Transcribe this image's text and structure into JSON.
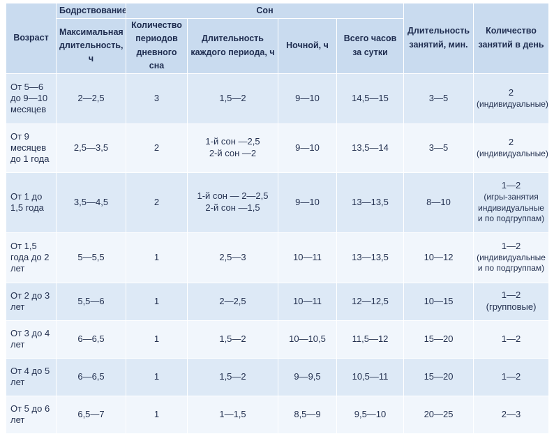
{
  "header": {
    "age": "Возраст",
    "wake_group": "Бодрствование",
    "sleep_group": "Сон",
    "max_wake": "Максимальная длительность, ч",
    "day_sleep_periods": "Количество периодов дневного сна",
    "period_duration": "Длительность каждого периода, ч",
    "night": "Ночной, ч",
    "total_hours": "Всего часов за сутки",
    "lesson_duration": "Длительность занятий, мин.",
    "lessons_per_day": "Количество занятий в день"
  },
  "rows": [
    {
      "age": "От 5—6 до 9—10 месяцев",
      "max_wake": "2—2,5",
      "periods": "3",
      "duration": [
        "1,5—2"
      ],
      "night": "9—10",
      "total": "14,5—15",
      "lesson_min": "3—5",
      "lessons": [
        "2",
        "(индивидуальные)"
      ]
    },
    {
      "age": "От 9 месяцев до 1 года",
      "max_wake": "2,5—3,5",
      "periods": "2",
      "duration": [
        "1-й сон —2,5",
        "2-й сон —2"
      ],
      "night": "9—10",
      "total": "13,5—14",
      "lesson_min": "3—5",
      "lessons": [
        "2",
        "(индивидуальные)"
      ]
    },
    {
      "age": "От 1 до 1,5 года",
      "max_wake": "3,5—4,5",
      "periods": "2",
      "duration": [
        "1-й сон — 2—2,5",
        "2-й сон —1,5"
      ],
      "night": "9—10",
      "total": "13—13,5",
      "lesson_min": "8—10",
      "lessons": [
        "1—2",
        "(игры-занятия",
        "индивидуальные",
        "и по подгруппам)"
      ]
    },
    {
      "age": "От 1,5 года до 2 лет",
      "max_wake": "5—5,5",
      "periods": "1",
      "duration": [
        "2,5—3"
      ],
      "night": "10—11",
      "total": "13—13,5",
      "lesson_min": "10—12",
      "lessons": [
        "1—2",
        "(индивидуальные",
        "и по подгруппам)"
      ]
    },
    {
      "age": "От 2 до 3 лет",
      "max_wake": "5,5—6",
      "periods": "1",
      "duration": [
        "2—2,5"
      ],
      "night": "10—11",
      "total": "12—12,5",
      "lesson_min": "10—15",
      "lessons": [
        "1—2 (групповые)"
      ]
    },
    {
      "age": "От 3 до 4 лет",
      "max_wake": "6—6,5",
      "periods": "1",
      "duration": [
        "1,5—2"
      ],
      "night": "10—10,5",
      "total": "11,5—12",
      "lesson_min": "15—20",
      "lessons": [
        "1—2"
      ]
    },
    {
      "age": "От 4 до 5 лет",
      "max_wake": "6—6,5",
      "periods": "1",
      "duration": [
        "1,5—2"
      ],
      "night": "9—9,5",
      "total": "10,5—11",
      "lesson_min": "15—20",
      "lessons": [
        "1—2"
      ]
    },
    {
      "age": "От 5 до 6 лет",
      "max_wake": "6,5—7",
      "periods": "1",
      "duration": [
        "1—1,5"
      ],
      "night": "8,5—9",
      "total": "9,5—10",
      "lesson_min": "20—25",
      "lessons": [
        "2—3"
      ]
    }
  ]
}
